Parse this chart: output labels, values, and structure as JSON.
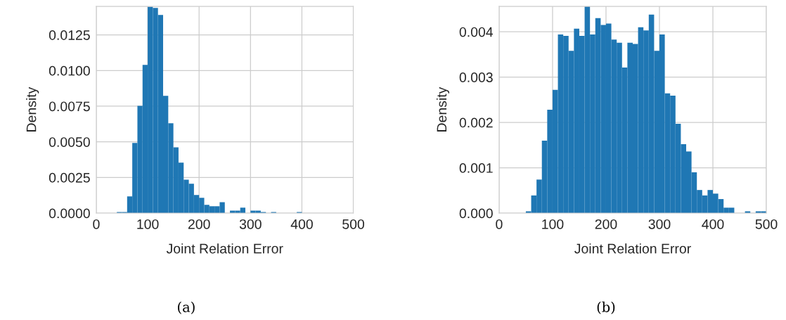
{
  "chart_data": [
    {
      "type": "histogram",
      "xlabel": "Joint Relation Error",
      "ylabel": "Density",
      "color": "#1f77b4",
      "bins": [
        40,
        50,
        60,
        70,
        80,
        90,
        100,
        110,
        120,
        130,
        140,
        150,
        160,
        170,
        180,
        190,
        200,
        210,
        220,
        230,
        240,
        250,
        260,
        270,
        280,
        290,
        300,
        310,
        320,
        330,
        340,
        350,
        360,
        370,
        380,
        390,
        400
      ],
      "values": [
        8e-05,
        8e-05,
        0.00117,
        0.00492,
        0.00752,
        0.0104,
        0.01448,
        0.01439,
        0.0139,
        0.00823,
        0.0063,
        0.00462,
        0.00354,
        0.00235,
        0.00206,
        0.00127,
        0.00107,
        0.00058,
        0.00048,
        0.00048,
        0.00077,
        0,
        0.00018,
        0.00018,
        0.00038,
        0,
        0.00018,
        0.00018,
        8e-05,
        0,
        8e-05,
        0,
        0,
        0,
        0,
        8e-05
      ],
      "xlim": [
        0,
        500
      ],
      "xticks": [
        0,
        100,
        200,
        300,
        400,
        500
      ],
      "ylim": [
        0,
        0.0145
      ],
      "yticks": [
        {
          "value": 0,
          "label": "0.0000"
        },
        {
          "value": 0.0025,
          "label": "0.0025"
        },
        {
          "value": 0.005,
          "label": "0.0050"
        },
        {
          "value": 0.0075,
          "label": "0.0075"
        },
        {
          "value": 0.01,
          "label": "0.0100"
        },
        {
          "value": 0.0125,
          "label": "0.0125"
        }
      ],
      "grid": true,
      "annotations": [
        "(a)"
      ]
    },
    {
      "type": "histogram",
      "xlabel": "Joint Relation Error",
      "ylabel": "Density",
      "color": "#1f77b4",
      "bins": [
        50,
        60,
        70,
        80,
        90,
        100,
        110,
        120,
        130,
        140,
        150,
        160,
        170,
        180,
        190,
        200,
        210,
        220,
        230,
        240,
        250,
        260,
        270,
        280,
        290,
        300,
        310,
        320,
        330,
        340,
        350,
        360,
        370,
        380,
        390,
        400,
        410,
        420,
        430,
        440,
        450,
        460,
        470,
        480,
        490,
        500
      ],
      "values": [
        4e-05,
        0.00039,
        0.00074,
        0.0016,
        0.00228,
        0.00272,
        0.00394,
        0.00391,
        0.00358,
        0.00407,
        0.00391,
        0.00456,
        0.00394,
        0.0043,
        0.00415,
        0.00418,
        0.00383,
        0.00376,
        0.00321,
        0.00376,
        0.00373,
        0.0041,
        0.00403,
        0.00438,
        0.00358,
        0.00394,
        0.00264,
        0.00259,
        0.00197,
        0.00152,
        0.00136,
        0.0009,
        0.00051,
        0.00039,
        0.00051,
        0.00043,
        0.00031,
        0.00012,
        0.00012,
        0,
        0,
        4e-05,
        0,
        4e-05,
        4e-05
      ],
      "xlim": [
        0,
        500
      ],
      "xticks": [
        0,
        100,
        200,
        300,
        400,
        500
      ],
      "ylim": [
        0,
        0.00456
      ],
      "yticks": [
        {
          "value": 0,
          "label": "0.000"
        },
        {
          "value": 0.001,
          "label": "0.001"
        },
        {
          "value": 0.002,
          "label": "0.002"
        },
        {
          "value": 0.003,
          "label": "0.003"
        },
        {
          "value": 0.004,
          "label": "0.004"
        }
      ],
      "grid": true,
      "annotations": [
        "(b)"
      ]
    }
  ]
}
